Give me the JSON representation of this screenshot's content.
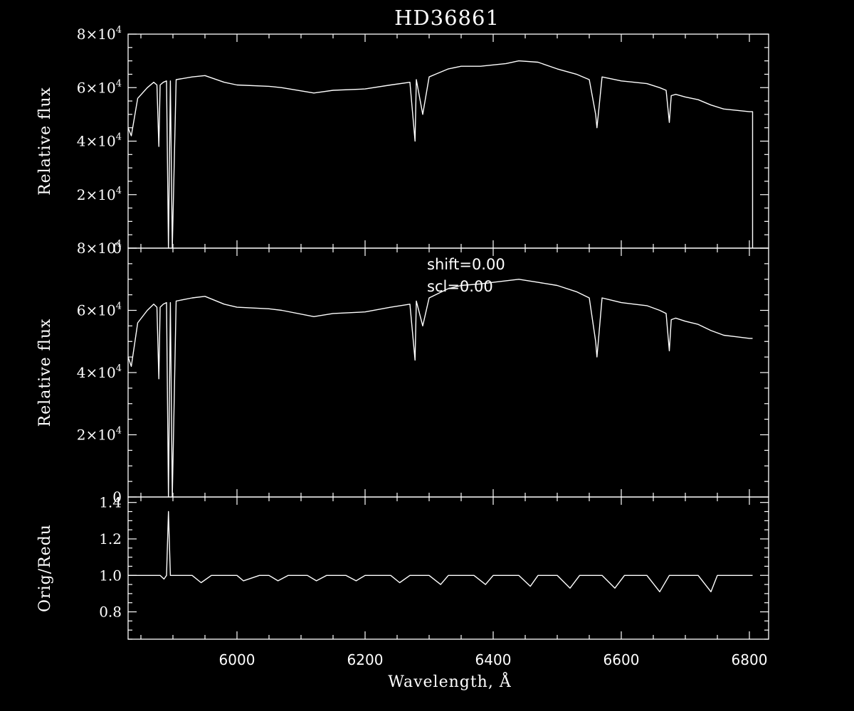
{
  "title": "HD36861",
  "xlabel": "Wavelength, Å",
  "colors": {
    "background": "#000000",
    "foreground": "#ffffff"
  },
  "annotations": {
    "shift": "shift=0.00",
    "scl": "scl=0.00"
  },
  "chart_data": [
    {
      "type": "line",
      "panel": "top",
      "ylabel": "Relative flux",
      "xlim": [
        5830,
        6830
      ],
      "ylim": [
        0,
        80000
      ],
      "yticks": [
        {
          "v": 0,
          "label": "0"
        },
        {
          "v": 20000,
          "label": "2×10^4"
        },
        {
          "v": 40000,
          "label": "4×10^4"
        },
        {
          "v": 60000,
          "label": "6×10^4"
        },
        {
          "v": 80000,
          "label": "8×10^4"
        }
      ],
      "x": [
        5830,
        5835,
        5845,
        5860,
        5870,
        5875,
        5878,
        5880,
        5885,
        5890,
        5893,
        5896,
        5899,
        5905,
        5930,
        5950,
        5980,
        6000,
        6050,
        6070,
        6120,
        6150,
        6200,
        6240,
        6270,
        6278,
        6280,
        6290,
        6300,
        6310,
        6330,
        6350,
        6380,
        6400,
        6420,
        6440,
        6470,
        6500,
        6530,
        6550,
        6560,
        6562,
        6565,
        6570,
        6580,
        6600,
        6620,
        6640,
        6660,
        6670,
        6675,
        6678,
        6685,
        6700,
        6720,
        6740,
        6760,
        6780,
        6800,
        6805,
        6805
      ],
      "values": [
        45000,
        42000,
        56000,
        60000,
        62000,
        61000,
        38000,
        61000,
        62000,
        62500,
        0,
        62500,
        0,
        63000,
        64000,
        64500,
        62000,
        61000,
        60500,
        60000,
        58000,
        59000,
        59500,
        61000,
        62000,
        40000,
        63000,
        50000,
        64000,
        65000,
        67000,
        68000,
        68000,
        68500,
        69000,
        70000,
        69500,
        67000,
        65000,
        63000,
        50000,
        45000,
        52000,
        64000,
        63500,
        62500,
        62000,
        61500,
        60000,
        59000,
        47000,
        57000,
        57500,
        56500,
        55500,
        53500,
        52000,
        51500,
        51000,
        51000,
        0
      ]
    },
    {
      "type": "line",
      "panel": "middle",
      "ylabel": "Relative flux",
      "xlim": [
        5830,
        6830
      ],
      "ylim": [
        0,
        80000
      ],
      "yticks": [
        {
          "v": 0,
          "label": "0"
        },
        {
          "v": 20000,
          "label": "2×10^4"
        },
        {
          "v": 40000,
          "label": "4×10^4"
        },
        {
          "v": 60000,
          "label": "6×10^4"
        },
        {
          "v": 80000,
          "label": "8×10^4"
        }
      ],
      "x": [
        5830,
        5835,
        5845,
        5860,
        5870,
        5875,
        5878,
        5880,
        5885,
        5890,
        5893,
        5896,
        5899,
        5905,
        5930,
        5950,
        5980,
        6000,
        6050,
        6070,
        6120,
        6150,
        6200,
        6240,
        6270,
        6278,
        6280,
        6290,
        6300,
        6310,
        6330,
        6350,
        6380,
        6400,
        6420,
        6440,
        6470,
        6500,
        6530,
        6550,
        6560,
        6562,
        6565,
        6570,
        6580,
        6600,
        6620,
        6640,
        6660,
        6670,
        6675,
        6678,
        6685,
        6700,
        6720,
        6740,
        6760,
        6780,
        6800,
        6805
      ],
      "values": [
        45000,
        42000,
        56000,
        60000,
        62000,
        61000,
        38000,
        61000,
        62000,
        62500,
        0,
        62500,
        0,
        63000,
        64000,
        64500,
        62000,
        61000,
        60500,
        60000,
        58000,
        59000,
        59500,
        61000,
        62000,
        44000,
        63000,
        55000,
        64000,
        65000,
        67000,
        68000,
        68500,
        69000,
        69500,
        70000,
        69000,
        68000,
        66000,
        64000,
        50000,
        45000,
        52000,
        64000,
        63500,
        62500,
        62000,
        61500,
        60000,
        59000,
        47000,
        57000,
        57500,
        56500,
        55500,
        53500,
        52000,
        51500,
        51000,
        51000
      ]
    },
    {
      "type": "line",
      "panel": "bottom",
      "ylabel": "Orig/Redu",
      "xlim": [
        5830,
        6830
      ],
      "ylim": [
        0.65,
        1.43
      ],
      "yticks": [
        {
          "v": 0.8,
          "label": "0.8"
        },
        {
          "v": 1.0,
          "label": "1.0"
        },
        {
          "v": 1.2,
          "label": "1.2"
        },
        {
          "v": 1.4,
          "label": "1.4"
        }
      ],
      "xticks": [
        6000,
        6200,
        6400,
        6600,
        6800
      ],
      "x": [
        5830,
        5880,
        5886,
        5890,
        5893,
        5896,
        5900,
        5930,
        5944,
        5960,
        6000,
        6010,
        6035,
        6050,
        6064,
        6080,
        6110,
        6124,
        6140,
        6170,
        6186,
        6200,
        6240,
        6254,
        6270,
        6300,
        6318,
        6330,
        6370,
        6388,
        6400,
        6440,
        6458,
        6470,
        6500,
        6520,
        6535,
        6570,
        6590,
        6605,
        6640,
        6660,
        6675,
        6720,
        6740,
        6750,
        6805
      ],
      "values": [
        1.0,
        1.0,
        0.98,
        1.0,
        1.35,
        1.0,
        1.0,
        1.0,
        0.96,
        1.0,
        1.0,
        0.97,
        1.0,
        1.0,
        0.97,
        1.0,
        1.0,
        0.97,
        1.0,
        1.0,
        0.97,
        1.0,
        1.0,
        0.96,
        1.0,
        1.0,
        0.95,
        1.0,
        1.0,
        0.95,
        1.0,
        1.0,
        0.94,
        1.0,
        1.0,
        0.93,
        1.0,
        1.0,
        0.93,
        1.0,
        1.0,
        0.91,
        1.0,
        1.0,
        0.91,
        1.0,
        1.0
      ]
    }
  ]
}
